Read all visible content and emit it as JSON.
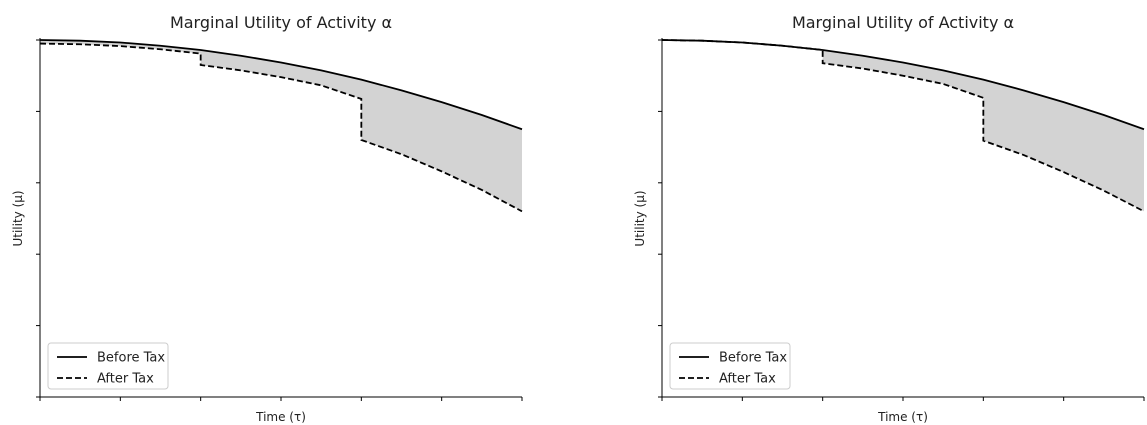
{
  "chart_data": [
    {
      "type": "line",
      "title": "Marginal Utility of Activity α",
      "xlabel": "Time (τ)",
      "ylabel": "Utility (μ)",
      "xlim": [
        0,
        6
      ],
      "ylim": [
        0,
        1
      ],
      "x_ticks": [
        0,
        1,
        2,
        3,
        4,
        5,
        6
      ],
      "y_ticks": [
        0,
        0.2,
        0.4,
        0.6,
        0.8,
        1.0
      ],
      "tick_labels_shown": false,
      "grid": false,
      "legend": "bottom-left",
      "fill_between_series": true,
      "fill_color": "#d3d3d3",
      "series": [
        {
          "name": "Before Tax",
          "style": "solid",
          "color": "#000000",
          "x": [
            0,
            0.5,
            1,
            1.5,
            2,
            2.5,
            3,
            3.5,
            4,
            4.5,
            5,
            5.5,
            6
          ],
          "y": [
            1.0,
            0.998,
            0.993,
            0.984,
            0.972,
            0.956,
            0.937,
            0.915,
            0.889,
            0.859,
            0.826,
            0.79,
            0.75
          ]
        },
        {
          "name": "After Tax",
          "style": "dashed",
          "color": "#000000",
          "x": [
            0,
            0.5,
            1,
            1.5,
            2,
            2,
            2.5,
            3,
            3.5,
            4,
            4,
            4.5,
            5,
            5.5,
            6
          ],
          "y": [
            0.99,
            0.988,
            0.983,
            0.974,
            0.962,
            0.93,
            0.915,
            0.896,
            0.873,
            0.835,
            0.72,
            0.68,
            0.632,
            0.58,
            0.52
          ]
        }
      ]
    },
    {
      "type": "line",
      "title": "Marginal Utility of Activity α",
      "xlabel": "Time (τ)",
      "ylabel": "Utility (μ)",
      "xlim": [
        0,
        6
      ],
      "ylim": [
        0,
        1
      ],
      "x_ticks": [
        0,
        1,
        2,
        3,
        4,
        5,
        6
      ],
      "y_ticks": [
        0,
        0.2,
        0.4,
        0.6,
        0.8,
        1.0
      ],
      "tick_labels_shown": false,
      "grid": false,
      "legend": "bottom-left",
      "fill_between_series": true,
      "fill_color": "#d3d3d3",
      "series": [
        {
          "name": "Before Tax",
          "style": "solid",
          "color": "#000000",
          "x": [
            0,
            0.5,
            1,
            1.5,
            2,
            2.5,
            3,
            3.5,
            4,
            4.5,
            5,
            5.5,
            6
          ],
          "y": [
            1.0,
            0.998,
            0.993,
            0.984,
            0.972,
            0.956,
            0.937,
            0.915,
            0.889,
            0.859,
            0.826,
            0.79,
            0.75
          ]
        },
        {
          "name": "After Tax",
          "style": "dashed",
          "color": "#000000",
          "x": [
            0,
            0.5,
            1,
            1.5,
            2,
            2,
            2.5,
            3,
            3.5,
            4,
            4,
            4.5,
            5,
            5.5,
            6
          ],
          "y": [
            1.0,
            0.998,
            0.993,
            0.984,
            0.972,
            0.935,
            0.92,
            0.9,
            0.877,
            0.838,
            0.718,
            0.678,
            0.63,
            0.578,
            0.52
          ]
        }
      ]
    }
  ]
}
